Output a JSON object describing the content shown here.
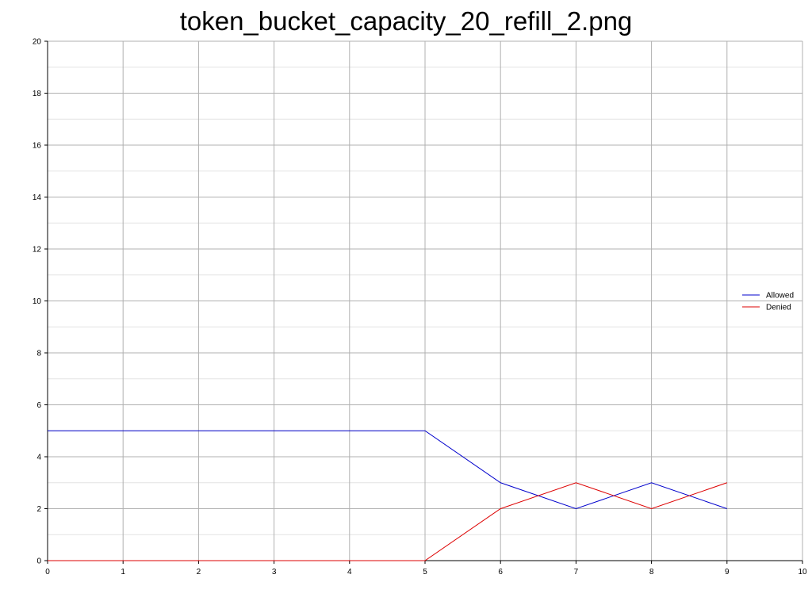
{
  "chart_data": {
    "type": "line",
    "title": "token_bucket_capacity_20_refill_2.png",
    "xlabel": "",
    "ylabel": "",
    "xlim": [
      0,
      10
    ],
    "ylim": [
      0,
      20
    ],
    "x_ticks": [
      0,
      1,
      2,
      3,
      4,
      5,
      6,
      7,
      8,
      9,
      10
    ],
    "y_ticks": [
      0,
      2,
      4,
      6,
      8,
      10,
      12,
      14,
      16,
      18,
      20
    ],
    "y_minor_step": 1,
    "grid": true,
    "legend_position": "right",
    "series": [
      {
        "name": "Allowed",
        "color": "#0000cc",
        "x": [
          0,
          1,
          2,
          3,
          4,
          5,
          6,
          7,
          8,
          9
        ],
        "y": [
          5,
          5,
          5,
          5,
          5,
          5,
          3,
          2,
          3,
          2
        ]
      },
      {
        "name": "Denied",
        "color": "#dd0000",
        "x": [
          0,
          1,
          2,
          3,
          4,
          5,
          6,
          7,
          8,
          9
        ],
        "y": [
          0,
          0,
          0,
          0,
          0,
          0,
          2,
          3,
          2,
          3
        ]
      }
    ]
  }
}
